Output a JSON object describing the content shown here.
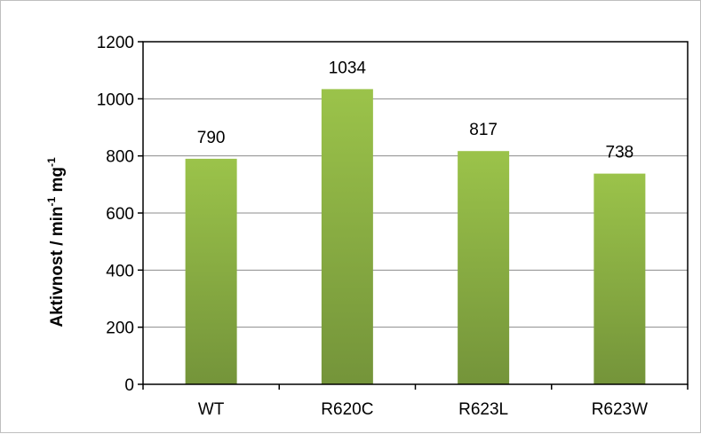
{
  "chart_data": {
    "type": "bar",
    "categories": [
      "WT",
      "R620C",
      "R623L",
      "R623W"
    ],
    "values": [
      790,
      1034,
      817,
      738
    ],
    "data_labels": [
      "790",
      "1034",
      "817",
      "738"
    ],
    "title": "",
    "xlabel": "",
    "ylabel": {
      "main": "Aktivnost / min",
      "sup1": "-1",
      "mid": " mg",
      "sup2": "-1"
    },
    "ylim": [
      0,
      1200
    ],
    "yticks": [
      0,
      200,
      400,
      600,
      800,
      1000,
      1200
    ],
    "grid": true,
    "legend": "none",
    "colors": {
      "bar_top": "#9bc34a",
      "bar_bottom": "#74943a",
      "grid": "#8c8c8c",
      "axis": "#000000"
    }
  }
}
